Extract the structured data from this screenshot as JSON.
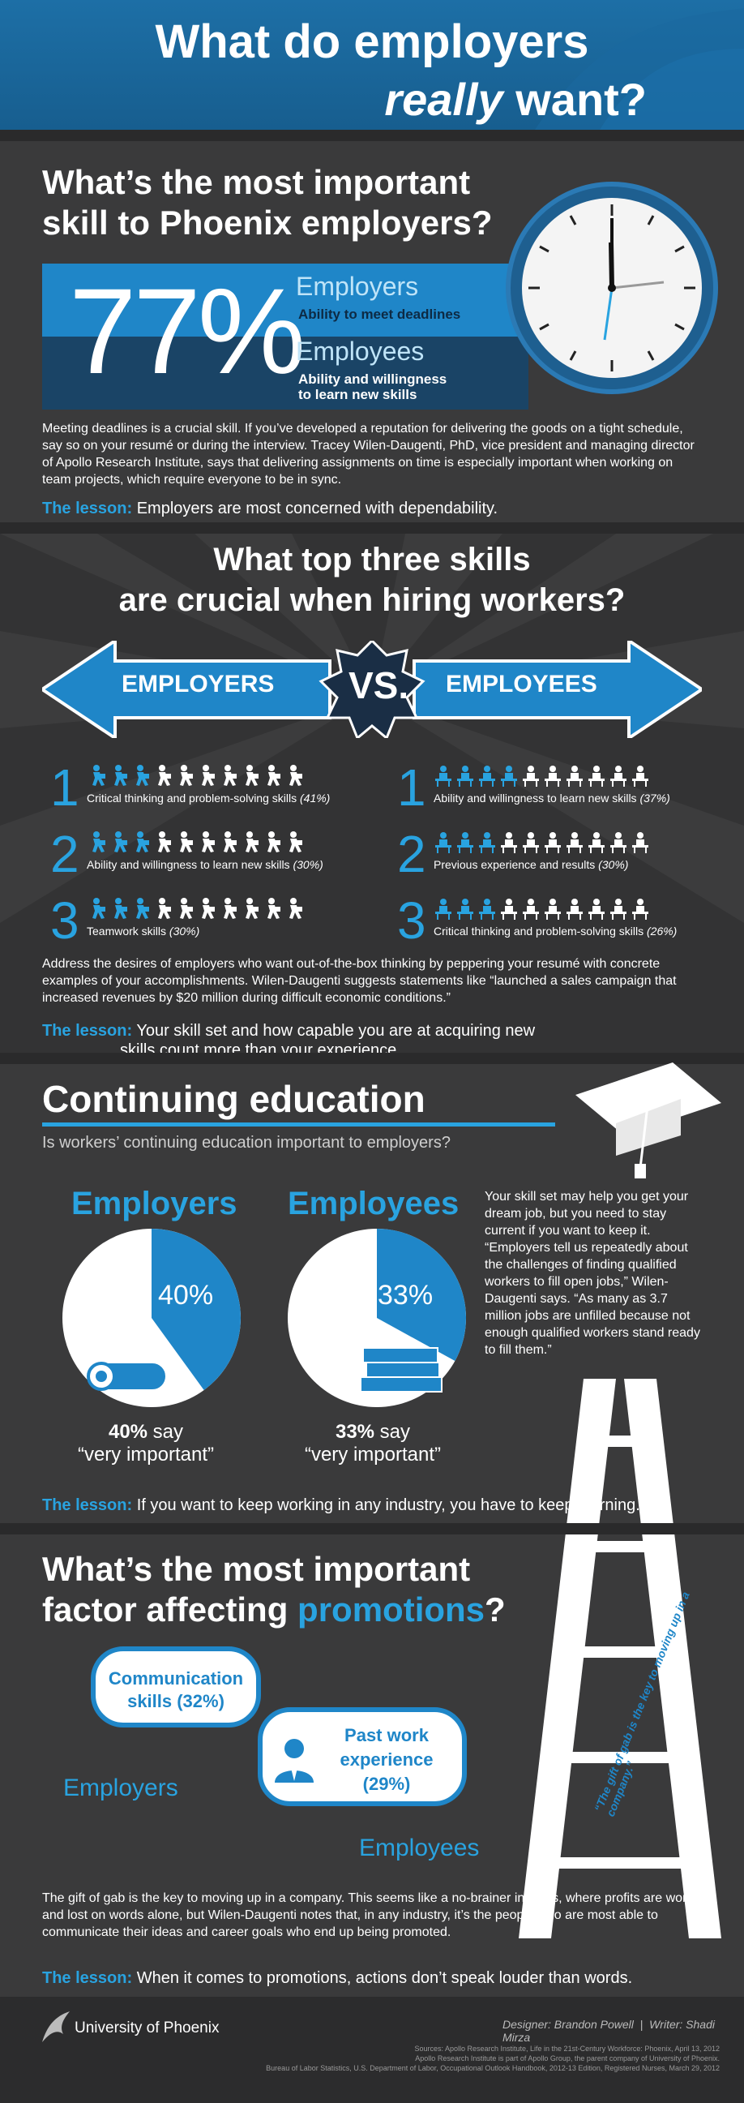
{
  "header": {
    "line1": "What do employers",
    "line2": "really",
    "line3": "want?"
  },
  "sec1": {
    "question_line1": "What’s the most important",
    "question_line2": "skill to Phoenix employers?",
    "percent": "77%",
    "employers_label": "Employers",
    "employers_skill": "Ability to meet deadlines",
    "employees_label": "Employees",
    "employees_skill_line1": "Ability and willingness",
    "employees_skill_line2": "to learn new skills",
    "para": "Meeting deadlines is a crucial skill. If you’ve developed a reputation for delivering the goods on a tight schedule, say so on your resumé or during the interview. Tracey Wilen-Daugenti, PhD, vice president and managing director of Apollo Research Institute, says that delivering assignments on time is especially important when working on team projects, which require everyone to be in sync.",
    "lesson_label": "The lesson:",
    "lesson_text": " Employers are most concerned with dependability."
  },
  "sec2": {
    "question_line1": "What top three skills",
    "question_line2": "are crucial when hiring workers?",
    "employers": "EMPLOYERS",
    "vs": "VS.",
    "employees": "EMPLOYEES",
    "left": [
      {
        "rank": "1",
        "skill": "Critical thinking and problem-solving skills",
        "pct": "(41%)",
        "filled": 3
      },
      {
        "rank": "2",
        "skill": "Ability and willingness to learn new skills",
        "pct": "(30%)",
        "filled": 3
      },
      {
        "rank": "3",
        "skill": "Teamwork skills",
        "pct": "(30%)",
        "filled": 3
      }
    ],
    "right": [
      {
        "rank": "1",
        "skill": "Ability and willingness to learn new skills",
        "pct": "(37%)",
        "filled": 4
      },
      {
        "rank": "2",
        "skill": "Previous experience and results",
        "pct": "(30%)",
        "filled": 3
      },
      {
        "rank": "3",
        "skill": "Critical thinking and problem-solving skills",
        "pct": "(26%)",
        "filled": 3
      }
    ],
    "para": "Address the desires of employers who want out-of-the-box thinking by peppering your resumé with concrete examples of your accomplishments. Wilen-Daugenti suggests statements like “launched a sales campaign that increased revenues by $20 million during difficult economic conditions.”",
    "lesson_label": "The lesson:",
    "lesson_text_1": " Your skill set and how capable you are at acquiring new",
    "lesson_text_2": "skills count more than your experience."
  },
  "sec3": {
    "title": "Continuing education",
    "subtitle": "Is workers’ continuing education important to employers?",
    "employers": "Employers",
    "employees": "Employees",
    "emp_pct": "40%",
    "ee_pct": "33%",
    "emp_say_1": "40%",
    "emp_say_2": " say",
    "emp_say_3": "“very important”",
    "ee_say_1": "33%",
    "ee_say_2": " say",
    "ee_say_3": "“very important”",
    "emp_value": 40,
    "ee_value": 33,
    "para": "Your skill set may help you get your dream job, but you need to stay current if you want to keep it. “Employers tell us repeatedly about the challenges of finding qualified workers to fill open jobs,” Wilen-Daugenti says. “As many as 3.7 million jobs are unfilled because not enough qualified workers stand ready to fill them.”",
    "lesson_label": "The lesson:",
    "lesson_text": " If you want to keep working in any industry, you have to keep learning."
  },
  "sec4": {
    "question_line1": "What’s the most important",
    "question_line2a": "factor affecting ",
    "question_line2b": "promotions",
    "question_line2c": "?",
    "ladder_text": "“The gift of gab is the key to moving up in a company.”",
    "bubble1_line1": "Communication",
    "bubble1_line2": "skills (32%)",
    "bubble2_line1": "Past work",
    "bubble2_line2": "experience",
    "bubble2_line3": "(29%)",
    "employers": "Employers",
    "employees": "Employees",
    "para": "The gift of gab is the key to moving up in a company. This seems like a no-brainer in sales, where profits are won and lost on words alone, but Wilen-Daugenti notes that, in any industry, it’s the people who are most able to communicate their ideas and career goals who end up being promoted.",
    "lesson_label": "The lesson:",
    "lesson_text": " When it comes to promotions, actions don’t speak louder than words."
  },
  "footer": {
    "brand": "University of Phoenix",
    "designer": "Designer: Brandon Powell",
    "writer": "Writer: Shadi Mirza",
    "src1": "Sources: Apollo Research Institute, Life in the 21st-Century Workforce: Phoenix, April 13, 2012",
    "src2": "Apollo Research Institute is part of Apollo Group, the parent company of University of Phoenix.",
    "src3": "Bureau of Labor Statistics, U.S. Department of Labor, Occupational Outlook Handbook, 2012-13 Edition, Registered Nurses, March 29, 2012"
  },
  "colors": {
    "accent": "#29a3e0",
    "dark_blue": "#1a4466",
    "bg": "#3a3a3b"
  }
}
